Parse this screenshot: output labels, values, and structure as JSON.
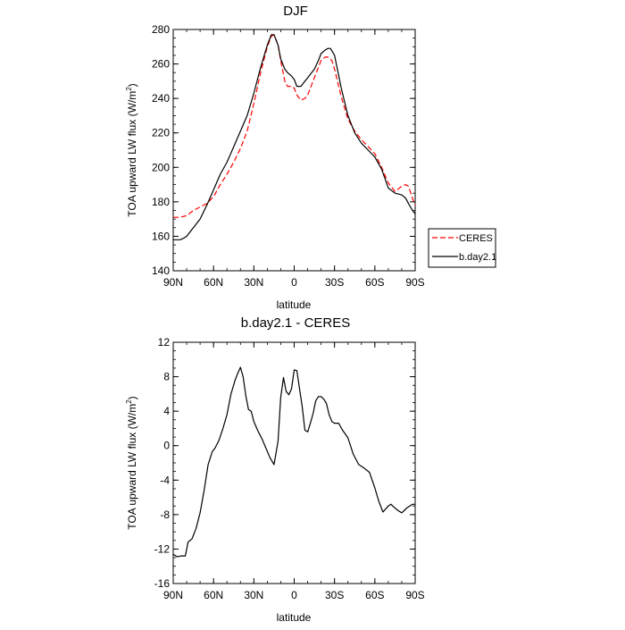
{
  "chart_data": [
    {
      "type": "line",
      "title": "DJF",
      "xlabel": "latitude",
      "ylabel": "TOA upward LW flux (W/m",
      "ylabel_sup": "2",
      "ylabel_end": ")",
      "xlim": [
        -90,
        90
      ],
      "ylim": [
        140,
        280
      ],
      "xticks": [
        -90,
        -60,
        -30,
        0,
        30,
        60,
        90
      ],
      "xtick_labels": [
        "90N",
        "60N",
        "30N",
        "0",
        "30S",
        "60S",
        "90S"
      ],
      "yticks": [
        140,
        160,
        180,
        200,
        220,
        240,
        260,
        280
      ],
      "ytick_labels": [
        "140",
        "160",
        "180",
        "200",
        "220",
        "240",
        "260",
        "280"
      ],
      "legend": {
        "placement": "right",
        "entries": [
          "CERES",
          "b.day2.1"
        ]
      },
      "series": [
        {
          "name": "CERES",
          "color": "#ff0000",
          "dash": "6,3",
          "x": [
            -90,
            -85,
            -80,
            -75,
            -70,
            -65,
            -60,
            -55,
            -50,
            -45,
            -40,
            -35,
            -30,
            -25,
            -20,
            -17,
            -15,
            -12,
            -10,
            -7,
            -5,
            -2,
            0,
            2,
            5,
            8,
            10,
            12,
            15,
            18,
            20,
            23,
            25,
            28,
            30,
            35,
            40,
            45,
            50,
            55,
            60,
            65,
            70,
            75,
            80,
            83,
            85,
            88,
            90
          ],
          "y": [
            171,
            171,
            172,
            175,
            177,
            179,
            183,
            190,
            196,
            203,
            211,
            221,
            237,
            255,
            270,
            276,
            277,
            271,
            262,
            250,
            247,
            247,
            246,
            242,
            239,
            240,
            242,
            246,
            252,
            258,
            262,
            264,
            264,
            262,
            257,
            241,
            228,
            221,
            216,
            212,
            208,
            200,
            191,
            186,
            189,
            190,
            189,
            182,
            178
          ]
        },
        {
          "name": "b.day2.1",
          "color": "#000000",
          "dash": "",
          "x": [
            -90,
            -85,
            -82,
            -80,
            -75,
            -70,
            -65,
            -60,
            -55,
            -50,
            -45,
            -40,
            -35,
            -30,
            -25,
            -20,
            -17,
            -15,
            -12,
            -10,
            -7,
            -5,
            -2,
            0,
            2,
            5,
            8,
            10,
            12,
            15,
            18,
            20,
            23,
            25,
            27,
            30,
            35,
            40,
            45,
            50,
            55,
            60,
            65,
            70,
            75,
            80,
            83,
            85,
            88,
            90
          ],
          "y": [
            158,
            158,
            159,
            160,
            165,
            170,
            178,
            187,
            196,
            203,
            212,
            221,
            230,
            243,
            258,
            271,
            277,
            277,
            271,
            263,
            257,
            255,
            253,
            251,
            247,
            247,
            250,
            252,
            254,
            257,
            262,
            266,
            268,
            269,
            269,
            265,
            246,
            230,
            220,
            214,
            210,
            206,
            199,
            188,
            185,
            184,
            182,
            179,
            175,
            173
          ]
        }
      ]
    },
    {
      "type": "line",
      "title": "b.day2.1 - CERES",
      "xlabel": "latitude",
      "ylabel": "TOA upward LW flux (W/m",
      "ylabel_sup": "2",
      "ylabel_end": ")",
      "xlim": [
        -90,
        90
      ],
      "ylim": [
        -16,
        12
      ],
      "xticks": [
        -90,
        -60,
        -30,
        0,
        30,
        60,
        90
      ],
      "xtick_labels": [
        "90N",
        "60N",
        "30N",
        "0",
        "30S",
        "60S",
        "90S"
      ],
      "yticks": [
        -16,
        -12,
        -8,
        -4,
        0,
        4,
        8,
        12
      ],
      "ytick_labels": [
        "-16",
        "-12",
        "-8",
        "-4",
        "0",
        "4",
        "8",
        "12"
      ],
      "series": [
        {
          "name": "b.day2.1 - CERES",
          "color": "#000000",
          "dash": "",
          "x": [
            -90,
            -87,
            -84,
            -81,
            -79,
            -76,
            -73,
            -70,
            -67,
            -64,
            -61,
            -59,
            -56,
            -53,
            -50,
            -47,
            -44,
            -42,
            -40,
            -38,
            -36,
            -34,
            -32,
            -30,
            -27,
            -24,
            -21,
            -18,
            -15,
            -12,
            -10,
            -8,
            -6,
            -4,
            -2,
            0,
            2,
            4,
            6,
            8,
            10,
            12,
            14,
            16,
            18,
            20,
            22,
            24,
            26,
            28,
            30,
            33,
            36,
            40,
            44,
            48,
            52,
            56,
            60,
            63,
            66,
            70,
            72,
            74,
            77,
            80,
            82,
            84,
            86,
            88,
            90
          ],
          "y": [
            -12.6,
            -12.9,
            -12.8,
            -12.8,
            -11.2,
            -10.8,
            -9.6,
            -7.8,
            -5.2,
            -2.2,
            -0.7,
            -0.3,
            0.6,
            2,
            3.6,
            6,
            7.6,
            8.4,
            9.1,
            8,
            5.8,
            4.2,
            4,
            2.8,
            1.7,
            0.8,
            -0.3,
            -1.4,
            -2.2,
            0.5,
            5.6,
            7.9,
            6.3,
            5.9,
            6.6,
            8.8,
            8.7,
            6.6,
            4.5,
            1.8,
            1.6,
            2.6,
            3.7,
            5.2,
            5.7,
            5.7,
            5.4,
            4.9,
            3.6,
            2.8,
            2.6,
            2.6,
            1.8,
            0.9,
            -1,
            -2.2,
            -2.6,
            -3.1,
            -4.9,
            -6.5,
            -7.7,
            -7,
            -6.8,
            -7.1,
            -7.5,
            -7.8,
            -7.5,
            -7.2,
            -7,
            -6.8,
            -6.8
          ]
        }
      ]
    }
  ]
}
